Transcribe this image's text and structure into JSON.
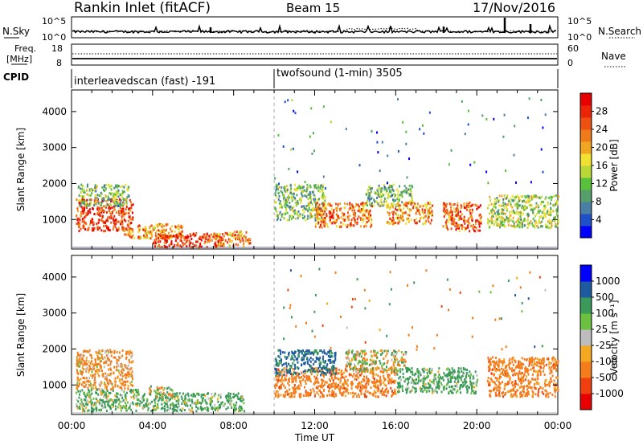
{
  "header": {
    "title": "Rankin Inlet (fitACF)",
    "beam": "Beam 15",
    "date": "17/Nov/2016"
  },
  "top_panels": {
    "nsky_label": "N.Sky",
    "nsky_ticks": [
      "10^5",
      "10^0"
    ],
    "nsearch_label": "N.Search",
    "nsearch_ticks": [
      "10^5",
      "10^0"
    ],
    "freq_label_1": "Freq.",
    "freq_label_2": "[MHz]",
    "freq_ticks": [
      "18",
      "8"
    ],
    "nave_label": "Nave",
    "nave_ticks": [
      "60",
      "0"
    ],
    "cpid_label": "CPID",
    "cpid_modes": [
      {
        "name": "interleavedscan (fast) -191",
        "start_hour": 0
      },
      {
        "name": "twofsound (1-min) 3505",
        "start_hour": 10
      }
    ]
  },
  "chart_data": [
    {
      "type": "heatmap",
      "panel": "power",
      "ylabel": "Slant Range [km]",
      "ytick_labels": [
        "1000",
        "2000",
        "3000",
        "4000"
      ],
      "yticks": [
        1000,
        2000,
        3000,
        4000
      ],
      "ylim": [
        180,
        4600
      ],
      "xlim": [
        0,
        24
      ],
      "colorbar": {
        "label": "Power [dB]",
        "tick_labels": [
          "4",
          "8",
          "12",
          "16",
          "20",
          "24",
          "28"
        ],
        "range": [
          0,
          32
        ],
        "colors": [
          "#0000ff",
          "#1e50c8",
          "#4a7fa5",
          "#55a06a",
          "#58c03a",
          "#b8d838",
          "#f0e030",
          "#f2a520",
          "#f07a1a",
          "#ee5012",
          "#ec2408",
          "#e80000"
        ]
      },
      "regions": [
        {
          "x0": 0.2,
          "x1": 3.0,
          "y0": 700,
          "y1": 1600,
          "value": 27
        },
        {
          "x0": 0.3,
          "x1": 2.8,
          "y0": 1400,
          "y1": 2000,
          "value": 12
        },
        {
          "x0": 2.5,
          "x1": 5.5,
          "y0": 500,
          "y1": 900,
          "value": 22
        },
        {
          "x0": 4.0,
          "x1": 7.5,
          "y0": 250,
          "y1": 650,
          "value": 26
        },
        {
          "x0": 7.0,
          "x1": 8.8,
          "y0": 300,
          "y1": 700,
          "value": 22
        },
        {
          "x0": 10.0,
          "x1": 12.5,
          "y0": 1000,
          "y1": 2000,
          "value": 12
        },
        {
          "x0": 12.0,
          "x1": 14.8,
          "y0": 800,
          "y1": 1500,
          "value": 23
        },
        {
          "x0": 14.5,
          "x1": 16.8,
          "y0": 1400,
          "y1": 2000,
          "value": 12
        },
        {
          "x0": 15.5,
          "x1": 17.8,
          "y0": 900,
          "y1": 1500,
          "value": 22
        },
        {
          "x0": 18.3,
          "x1": 20.2,
          "y0": 700,
          "y1": 1500,
          "value": 25
        },
        {
          "x0": 20.5,
          "x1": 24.0,
          "y0": 800,
          "y1": 1700,
          "value": 14
        }
      ]
    },
    {
      "type": "heatmap",
      "panel": "velocity",
      "ylabel": "Slant Range [km]",
      "ytick_labels": [
        "1000",
        "2000",
        "3000",
        "4000"
      ],
      "yticks": [
        1000,
        2000,
        3000,
        4000
      ],
      "ylim": [
        180,
        4600
      ],
      "xlim": [
        0,
        24
      ],
      "xlabel": "Time UT",
      "xtick_labels": [
        "00:00",
        "04:00",
        "08:00",
        "12:00",
        "16:00",
        "20:00",
        "00:00"
      ],
      "xticks": [
        0,
        4,
        8,
        12,
        16,
        20,
        24
      ],
      "colorbar": {
        "label": "Velocity [m s⁻¹]",
        "tick_labels": [
          "-1000",
          "-500",
          "-100",
          "-25",
          "25",
          "100",
          "500",
          "1000"
        ],
        "colors": [
          "#e80000",
          "#f04010",
          "#f47c1a",
          "#f4a820",
          "#bdbdbd",
          "#6cc040",
          "#3a9a5a",
          "#1e5aa0",
          "#0000ff"
        ]
      },
      "regions": [
        {
          "x0": 0.2,
          "x1": 3.0,
          "y0": 900,
          "y1": 2000,
          "value": -200
        },
        {
          "x0": 0.2,
          "x1": 3.5,
          "y0": 300,
          "y1": 900,
          "value": 150
        },
        {
          "x0": 3.5,
          "x1": 8.5,
          "y0": 300,
          "y1": 800,
          "value": 180
        },
        {
          "x0": 3.8,
          "x1": 5.0,
          "y0": 700,
          "y1": 1000,
          "value": 0
        },
        {
          "x0": 10.0,
          "x1": 16.0,
          "y0": 700,
          "y1": 1500,
          "value": -300
        },
        {
          "x0": 10.0,
          "x1": 13.0,
          "y0": 1300,
          "y1": 2000,
          "value": 600
        },
        {
          "x0": 13.5,
          "x1": 16.5,
          "y0": 1400,
          "y1": 2000,
          "value": 0
        },
        {
          "x0": 16.0,
          "x1": 20.0,
          "y0": 800,
          "y1": 1500,
          "value": 200
        },
        {
          "x0": 20.5,
          "x1": 24.0,
          "y0": 700,
          "y1": 1800,
          "value": -300
        }
      ]
    }
  ]
}
